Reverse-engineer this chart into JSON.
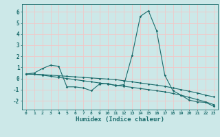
{
  "xlabel": "Humidex (Indice chaleur)",
  "background_color": "#cce8e8",
  "grid_color": "#f0c8c8",
  "line_color": "#1a6b6b",
  "xlim": [
    -0.5,
    23.5
  ],
  "ylim": [
    -2.8,
    6.7
  ],
  "yticks": [
    -2,
    -1,
    0,
    1,
    2,
    3,
    4,
    5,
    6
  ],
  "xticks": [
    0,
    1,
    2,
    3,
    4,
    5,
    6,
    7,
    8,
    9,
    10,
    11,
    12,
    13,
    14,
    15,
    16,
    17,
    18,
    19,
    20,
    21,
    22,
    23
  ],
  "series1_x": [
    0,
    1,
    2,
    3,
    4,
    5,
    6,
    7,
    8,
    9,
    10,
    11,
    12,
    13,
    14,
    15,
    16,
    17,
    18,
    19,
    20,
    21,
    22,
    23
  ],
  "series1_y": [
    0.4,
    0.5,
    0.9,
    1.2,
    1.1,
    -0.75,
    -0.75,
    -0.85,
    -1.1,
    -0.5,
    -0.45,
    -0.65,
    -0.55,
    2.1,
    5.6,
    6.1,
    4.3,
    0.3,
    -1.1,
    -1.5,
    -1.95,
    -2.1,
    -2.15,
    -2.5
  ],
  "series2_x": [
    0,
    1,
    2,
    3,
    4,
    5,
    6,
    7,
    8,
    9,
    10,
    11,
    12,
    13,
    14,
    15,
    16,
    17,
    18,
    19,
    20,
    21,
    22,
    23
  ],
  "series2_y": [
    0.4,
    0.38,
    0.35,
    0.3,
    0.25,
    0.2,
    0.15,
    0.1,
    0.05,
    0.0,
    -0.05,
    -0.1,
    -0.2,
    -0.3,
    -0.4,
    -0.5,
    -0.6,
    -0.7,
    -0.85,
    -1.0,
    -1.15,
    -1.3,
    -1.5,
    -1.65
  ],
  "series3_x": [
    0,
    1,
    2,
    3,
    4,
    5,
    6,
    7,
    8,
    9,
    10,
    11,
    12,
    13,
    14,
    15,
    16,
    17,
    18,
    19,
    20,
    21,
    22,
    23
  ],
  "series3_y": [
    0.4,
    0.38,
    0.3,
    0.2,
    0.1,
    0.0,
    -0.1,
    -0.2,
    -0.3,
    -0.4,
    -0.5,
    -0.6,
    -0.7,
    -0.8,
    -0.9,
    -1.0,
    -1.1,
    -1.2,
    -1.35,
    -1.5,
    -1.7,
    -1.9,
    -2.1,
    -2.35
  ]
}
